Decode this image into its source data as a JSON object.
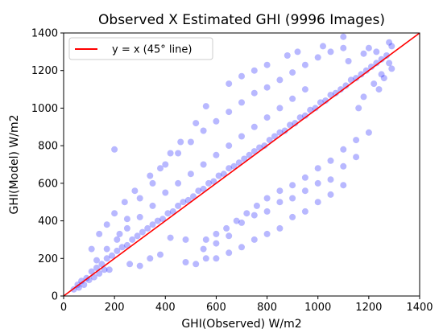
{
  "chart_data": {
    "type": "scatter",
    "title": "Observed X Estimated GHI (9996 Images)",
    "xlabel": "GHI(Observed) W/m2",
    "ylabel": "GHI(Model) W/m2",
    "xlim": [
      0,
      1400
    ],
    "ylim": [
      0,
      1400
    ],
    "xticks": [
      "0",
      "200",
      "400",
      "600",
      "800",
      "1000",
      "1200",
      "1400"
    ],
    "yticks": [
      "0",
      "200",
      "400",
      "600",
      "800",
      "1000",
      "1200",
      "1400"
    ],
    "grid": false,
    "legend": {
      "placement": "top-left",
      "entries": [
        "y = x (45° line)"
      ]
    },
    "series": [
      {
        "kind": "scatter",
        "color": "#0000ff",
        "point_count": 9996,
        "points": [
          [
            40,
            35
          ],
          [
            55,
            60
          ],
          [
            70,
            80
          ],
          [
            90,
            95
          ],
          [
            110,
            130
          ],
          [
            130,
            150
          ],
          [
            150,
            170
          ],
          [
            170,
            200
          ],
          [
            190,
            215
          ],
          [
            210,
            240
          ],
          [
            230,
            260
          ],
          [
            250,
            270
          ],
          [
            270,
            300
          ],
          [
            290,
            320
          ],
          [
            310,
            340
          ],
          [
            330,
            360
          ],
          [
            350,
            380
          ],
          [
            370,
            400
          ],
          [
            390,
            410
          ],
          [
            410,
            440
          ],
          [
            430,
            450
          ],
          [
            450,
            480
          ],
          [
            470,
            500
          ],
          [
            490,
            510
          ],
          [
            510,
            530
          ],
          [
            530,
            560
          ],
          [
            550,
            570
          ],
          [
            570,
            600
          ],
          [
            590,
            610
          ],
          [
            610,
            640
          ],
          [
            630,
            650
          ],
          [
            650,
            680
          ],
          [
            670,
            690
          ],
          [
            690,
            710
          ],
          [
            710,
            730
          ],
          [
            730,
            750
          ],
          [
            750,
            770
          ],
          [
            770,
            790
          ],
          [
            790,
            800
          ],
          [
            810,
            830
          ],
          [
            830,
            850
          ],
          [
            850,
            870
          ],
          [
            870,
            880
          ],
          [
            890,
            910
          ],
          [
            910,
            920
          ],
          [
            930,
            950
          ],
          [
            950,
            960
          ],
          [
            970,
            990
          ],
          [
            990,
            1000
          ],
          [
            1010,
            1030
          ],
          [
            1030,
            1040
          ],
          [
            1050,
            1070
          ],
          [
            1070,
            1080
          ],
          [
            1090,
            1100
          ],
          [
            1110,
            1120
          ],
          [
            1130,
            1150
          ],
          [
            1150,
            1160
          ],
          [
            1170,
            1180
          ],
          [
            1190,
            1200
          ],
          [
            1210,
            1220
          ],
          [
            1230,
            1240
          ],
          [
            1250,
            1260
          ],
          [
            1270,
            1280
          ],
          [
            1290,
            1330
          ],
          [
            1280,
            1350
          ],
          [
            200,
            780
          ],
          [
            220,
            330
          ],
          [
            250,
            410
          ],
          [
            300,
            520
          ],
          [
            350,
            600
          ],
          [
            400,
            700
          ],
          [
            450,
            760
          ],
          [
            500,
            820
          ],
          [
            550,
            880
          ],
          [
            600,
            930
          ],
          [
            650,
            980
          ],
          [
            700,
            1030
          ],
          [
            750,
            1080
          ],
          [
            800,
            1110
          ],
          [
            850,
            1150
          ],
          [
            900,
            1190
          ],
          [
            950,
            1230
          ],
          [
            1000,
            1270
          ],
          [
            1050,
            1300
          ],
          [
            1100,
            1320
          ],
          [
            420,
            310
          ],
          [
            480,
            300
          ],
          [
            550,
            250
          ],
          [
            600,
            280
          ],
          [
            650,
            320
          ],
          [
            700,
            390
          ],
          [
            750,
            430
          ],
          [
            800,
            450
          ],
          [
            850,
            500
          ],
          [
            900,
            520
          ],
          [
            950,
            560
          ],
          [
            1000,
            600
          ],
          [
            1050,
            620
          ],
          [
            1100,
            690
          ],
          [
            1150,
            740
          ],
          [
            600,
            200
          ],
          [
            650,
            230
          ],
          [
            700,
            260
          ],
          [
            750,
            300
          ],
          [
            800,
            330
          ],
          [
            850,
            360
          ],
          [
            900,
            420
          ],
          [
            950,
            450
          ],
          [
            1000,
            500
          ],
          [
            1050,
            540
          ],
          [
            1100,
            590
          ],
          [
            480,
            180
          ],
          [
            520,
            170
          ],
          [
            560,
            200
          ],
          [
            300,
            160
          ],
          [
            340,
            200
          ],
          [
            380,
            220
          ],
          [
            260,
            170
          ],
          [
            180,
            140
          ],
          [
            120,
            100
          ],
          [
            80,
            60
          ],
          [
            60,
            45
          ],
          [
            100,
            85
          ],
          [
            140,
            120
          ],
          [
            160,
            140
          ],
          [
            650,
            1130
          ],
          [
            700,
            1170
          ],
          [
            750,
            1200
          ],
          [
            800,
            1230
          ],
          [
            880,
            1280
          ],
          [
            920,
            1300
          ],
          [
            1020,
            1330
          ],
          [
            1100,
            1380
          ],
          [
            1200,
            1320
          ],
          [
            1280,
            1240
          ],
          [
            1250,
            1180
          ],
          [
            1220,
            1130
          ],
          [
            1180,
            1060
          ],
          [
            1160,
            1000
          ],
          [
            520,
            920
          ],
          [
            560,
            1010
          ],
          [
            460,
            820
          ],
          [
            420,
            760
          ],
          [
            380,
            680
          ],
          [
            340,
            640
          ],
          [
            280,
            560
          ],
          [
            240,
            500
          ],
          [
            200,
            440
          ],
          [
            170,
            380
          ],
          [
            140,
            330
          ],
          [
            110,
            250
          ],
          [
            1200,
            870
          ],
          [
            1150,
            830
          ],
          [
            1100,
            780
          ],
          [
            1050,
            720
          ],
          [
            1000,
            680
          ],
          [
            950,
            630
          ],
          [
            900,
            590
          ],
          [
            850,
            560
          ],
          [
            800,
            520
          ],
          [
            760,
            480
          ],
          [
            720,
            440
          ],
          [
            680,
            400
          ],
          [
            640,
            360
          ],
          [
            600,
            330
          ],
          [
            560,
            300
          ],
          [
            1260,
            1160
          ],
          [
            1240,
            1100
          ],
          [
            1290,
            1210
          ],
          [
            1230,
            1300
          ],
          [
            1180,
            1290
          ],
          [
            1120,
            1250
          ],
          [
            950,
            1100
          ],
          [
            900,
            1050
          ],
          [
            850,
            1000
          ],
          [
            800,
            950
          ],
          [
            750,
            900
          ],
          [
            700,
            850
          ],
          [
            650,
            800
          ],
          [
            600,
            750
          ],
          [
            550,
            700
          ],
          [
            500,
            650
          ],
          [
            450,
            600
          ],
          [
            400,
            550
          ],
          [
            350,
            480
          ],
          [
            300,
            420
          ],
          [
            250,
            360
          ],
          [
            210,
            300
          ],
          [
            170,
            250
          ],
          [
            130,
            190
          ]
        ]
      },
      {
        "kind": "line",
        "name": "y = x (45° line)",
        "color": "#ff0000",
        "x": [
          0,
          1400
        ],
        "y": [
          0,
          1400
        ]
      }
    ]
  }
}
